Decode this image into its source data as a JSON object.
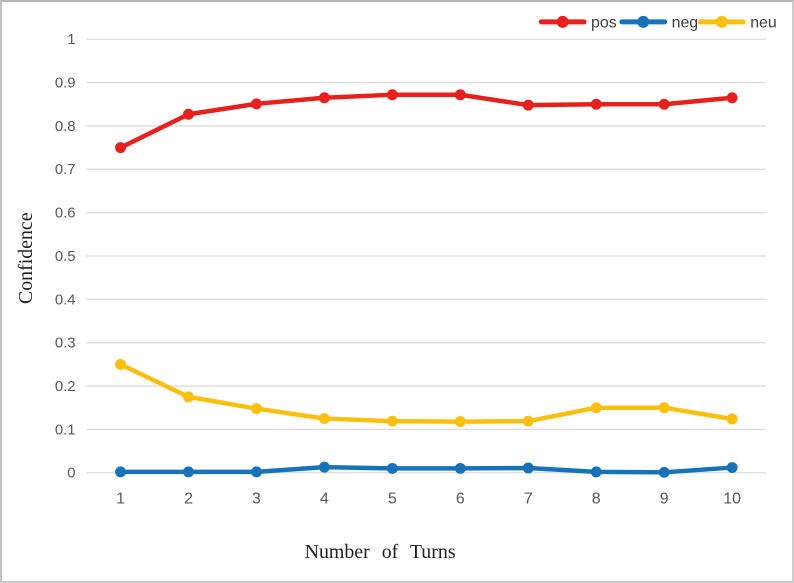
{
  "chart_data": {
    "type": "line",
    "title": "",
    "xlabel": "Number of Turns",
    "ylabel": "Confidence",
    "x": [
      "1",
      "2",
      "3",
      "4",
      "5",
      "6",
      "7",
      "8",
      "9",
      "10"
    ],
    "ylim": [
      0,
      1
    ],
    "yticks": [
      0,
      0.1,
      0.2,
      0.3,
      0.4,
      0.5,
      0.6,
      0.7,
      0.8,
      0.9,
      1
    ],
    "ytick_labels": [
      "0",
      "0.1",
      "0.2",
      "0.3",
      "0.4",
      "0.5",
      "0.6",
      "0.7",
      "0.8",
      "0.9",
      "1"
    ],
    "grid": true,
    "legend_position": "top-right",
    "series": [
      {
        "name": "pos",
        "color": "#e8201d",
        "values": [
          0.75,
          0.827,
          0.851,
          0.865,
          0.872,
          0.872,
          0.848,
          0.85,
          0.85,
          0.865
        ]
      },
      {
        "name": "neg",
        "color": "#1773b9",
        "values": [
          0.002,
          0.002,
          0.002,
          0.013,
          0.01,
          0.01,
          0.011,
          0.002,
          0.001,
          0.012
        ]
      },
      {
        "name": "neu",
        "color": "#fbbf10",
        "values": [
          0.25,
          0.175,
          0.148,
          0.125,
          0.119,
          0.118,
          0.119,
          0.15,
          0.15,
          0.124
        ]
      }
    ]
  },
  "styles": {
    "background": "#ffffff",
    "frame_border": "#c8c8c8",
    "gridline": "#dcdcdc",
    "tick_label": "#595959",
    "legend_label": "#3f3f3f",
    "axis_title": "#1f1f1f"
  }
}
